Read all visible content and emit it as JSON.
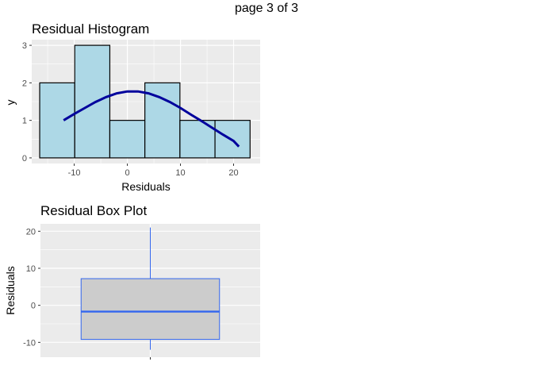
{
  "page_label": "page 3 of 3",
  "colors": {
    "panel_bg": "#ebebeb",
    "grid": "#ffffff",
    "hist_fill": "#add8e6",
    "hist_stroke": "#000000",
    "density_line": "#00009c",
    "box_fill": "#cccccc",
    "box_stroke": "#3366ee"
  },
  "chart_data": [
    {
      "type": "bar",
      "subtype": "histogram",
      "title": "Residual Histogram",
      "xlabel": "Residuals",
      "ylabel": "y",
      "xlim": [
        -18,
        25
      ],
      "ylim": [
        -0.15,
        3.15
      ],
      "x_ticks": [
        -10,
        0,
        10,
        20
      ],
      "x_tick_labels": [
        "-10",
        "0",
        "10",
        "20"
      ],
      "y_ticks": [
        0,
        1,
        2,
        3
      ],
      "y_tick_labels": [
        "0",
        "1",
        "2",
        "3"
      ],
      "bins": [
        {
          "x0": -16.5,
          "x1": -9.9,
          "count": 2
        },
        {
          "x0": -9.9,
          "x1": -3.3,
          "count": 3
        },
        {
          "x0": -3.3,
          "x1": 3.3,
          "count": 1
        },
        {
          "x0": 3.3,
          "x1": 9.9,
          "count": 2
        },
        {
          "x0": 9.9,
          "x1": 16.5,
          "count": 1
        },
        {
          "x0": 16.5,
          "x1": 23.1,
          "count": 1
        }
      ],
      "density_curve": {
        "x": [
          -12,
          -10,
          -8,
          -6,
          -4,
          -2,
          0,
          2,
          4,
          6,
          8,
          10,
          12,
          14,
          16,
          18,
          20,
          21
        ],
        "y": [
          1.0,
          1.17,
          1.33,
          1.49,
          1.62,
          1.72,
          1.77,
          1.77,
          1.72,
          1.62,
          1.49,
          1.33,
          1.15,
          0.98,
          0.8,
          0.62,
          0.45,
          0.3
        ]
      },
      "grid": true
    },
    {
      "type": "box",
      "title": "Residual Box Plot",
      "xlabel": "",
      "ylabel": "Residuals",
      "ylim": [
        -14,
        22
      ],
      "y_ticks": [
        -10,
        0,
        10,
        20
      ],
      "y_tick_labels": [
        "-10",
        "0",
        "10",
        "20"
      ],
      "box": {
        "min": -12,
        "q1": -9.2,
        "median": -1.7,
        "q3": 7.2,
        "max": 21
      },
      "grid": true
    }
  ]
}
